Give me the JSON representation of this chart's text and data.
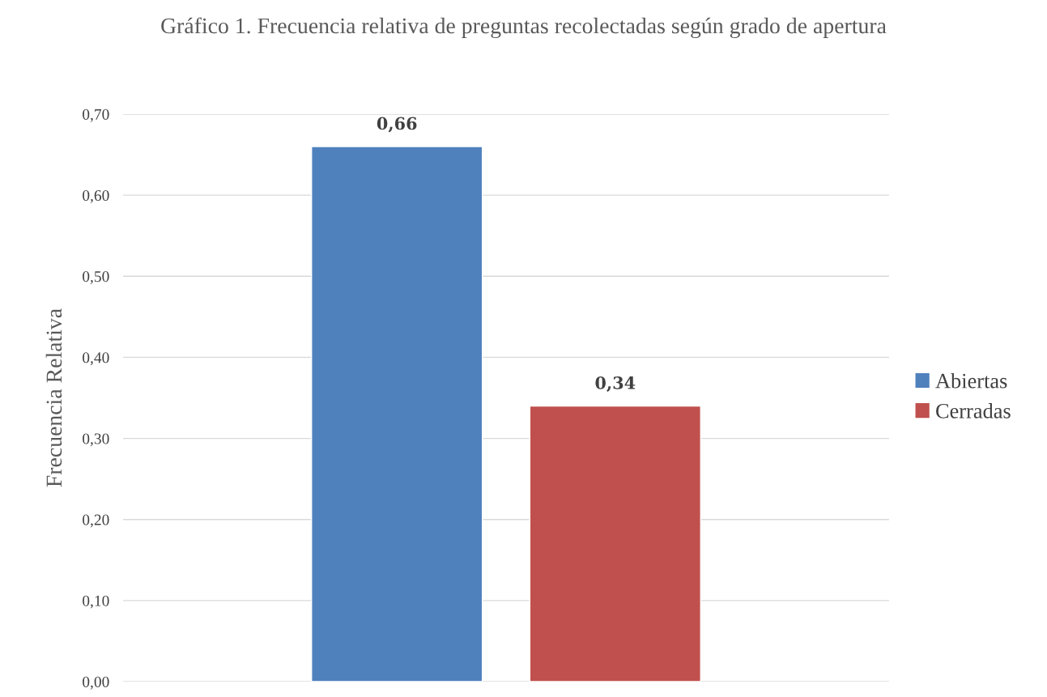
{
  "chart_data": {
    "type": "bar",
    "title": "Gráfico 1. Frecuencia relativa de preguntas recolectadas según grado de apertura",
    "ylabel": "Frecuencia Relativa",
    "categories": [
      null
    ],
    "series": [
      {
        "name": "Abiertas",
        "color": "#4f81bd",
        "values": [
          0.66
        ],
        "value_labels": [
          "0,66"
        ]
      },
      {
        "name": "Cerradas",
        "color": "#c0504d",
        "values": [
          0.34
        ],
        "value_labels": [
          "0,34"
        ]
      }
    ],
    "ylim": [
      0,
      0.7
    ],
    "yticks": [
      {
        "value": 0,
        "label": "0,00"
      },
      {
        "value": 0.1,
        "label": "0,10"
      },
      {
        "value": 0.2,
        "label": "0,20"
      },
      {
        "value": 0.3,
        "label": "0,30"
      },
      {
        "value": 0.4,
        "label": "0,40"
      },
      {
        "value": 0.5,
        "label": "0,50"
      },
      {
        "value": 0.6,
        "label": "0,60"
      },
      {
        "value": 0.7,
        "label": "0,70"
      }
    ],
    "grid": "y",
    "legend": "right"
  }
}
